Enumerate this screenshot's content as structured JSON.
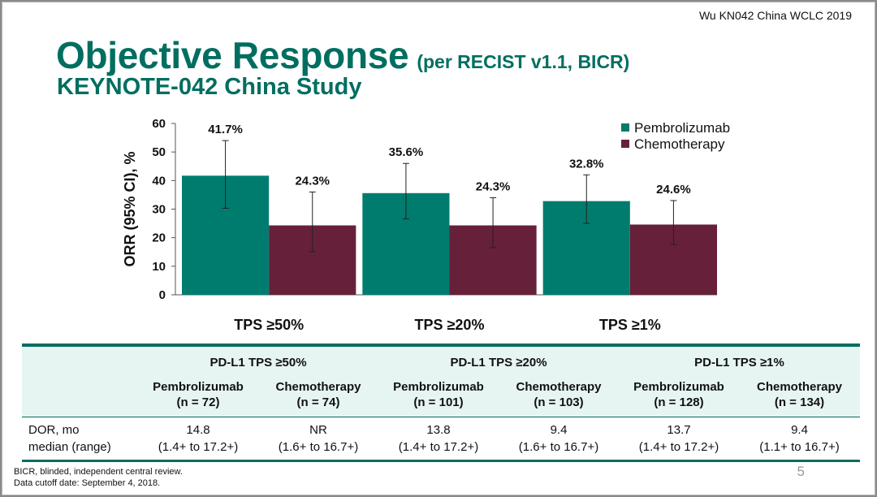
{
  "slide": {
    "citation": "Wu KN042 China WCLC 2019",
    "title": "Objective Response",
    "title_suffix": "(per RECIST v1.1, BICR)",
    "subtitle": "KEYNOTE-042 China Study",
    "page_number": "5"
  },
  "colors": {
    "pembrolizumab": "#007c6e",
    "chemotherapy": "#67203a",
    "accent": "#006e60"
  },
  "chart_data": {
    "type": "bar",
    "categories": [
      "TPS ≥50%",
      "TPS ≥20%",
      "TPS ≥1%"
    ],
    "ylabel": "ORR (95% CI), %",
    "ylim": [
      0,
      60
    ],
    "yticks": [
      0,
      10,
      20,
      30,
      40,
      50,
      60
    ],
    "legend_position": "top-right",
    "series": [
      {
        "name": "Pembrolizumab",
        "values": [
          41.7,
          35.6,
          32.8
        ],
        "labels": [
          "41.7%",
          "35.6%",
          "32.8%"
        ],
        "ci_low": [
          30.3,
          26.6,
          25.0
        ],
        "ci_high": [
          54.0,
          46.0,
          42.0
        ]
      },
      {
        "name": "Chemotherapy",
        "values": [
          24.3,
          24.3,
          24.6
        ],
        "labels": [
          "24.3%",
          "24.3%",
          "24.6%"
        ],
        "ci_low": [
          15.1,
          16.5,
          17.6
        ],
        "ci_high": [
          36.0,
          34.0,
          33.0
        ]
      }
    ]
  },
  "table": {
    "groups": [
      "PD-L1 TPS ≥50%",
      "PD-L1 TPS ≥20%",
      "PD-L1 TPS ≥1%"
    ],
    "arms": [
      {
        "name": "Pembrolizumab",
        "n": "(n = 72)"
      },
      {
        "name": "Chemotherapy",
        "n": "(n = 74)"
      },
      {
        "name": "Pembrolizumab",
        "n": "(n = 101)"
      },
      {
        "name": "Chemotherapy",
        "n": "(n = 103)"
      },
      {
        "name": "Pembrolizumab",
        "n": "(n = 128)"
      },
      {
        "name": "Chemotherapy",
        "n": "(n = 134)"
      }
    ],
    "row_label_1": "DOR, mo",
    "row_label_2": "median (range)",
    "dor": [
      {
        "median": "14.8",
        "range": "(1.4+ to 17.2+)"
      },
      {
        "median": "NR",
        "range": "(1.6+ to 16.7+)"
      },
      {
        "median": "13.8",
        "range": "(1.4+ to 17.2+)"
      },
      {
        "median": "9.4",
        "range": "(1.6+ to 16.7+)"
      },
      {
        "median": "13.7",
        "range": "(1.4+ to 17.2+)"
      },
      {
        "median": "9.4",
        "range": "(1.1+ to 16.7+)"
      }
    ]
  },
  "footnotes": {
    "line1": "BICR, blinded, independent central review.",
    "line2": "Data cutoff date: September 4, 2018."
  }
}
